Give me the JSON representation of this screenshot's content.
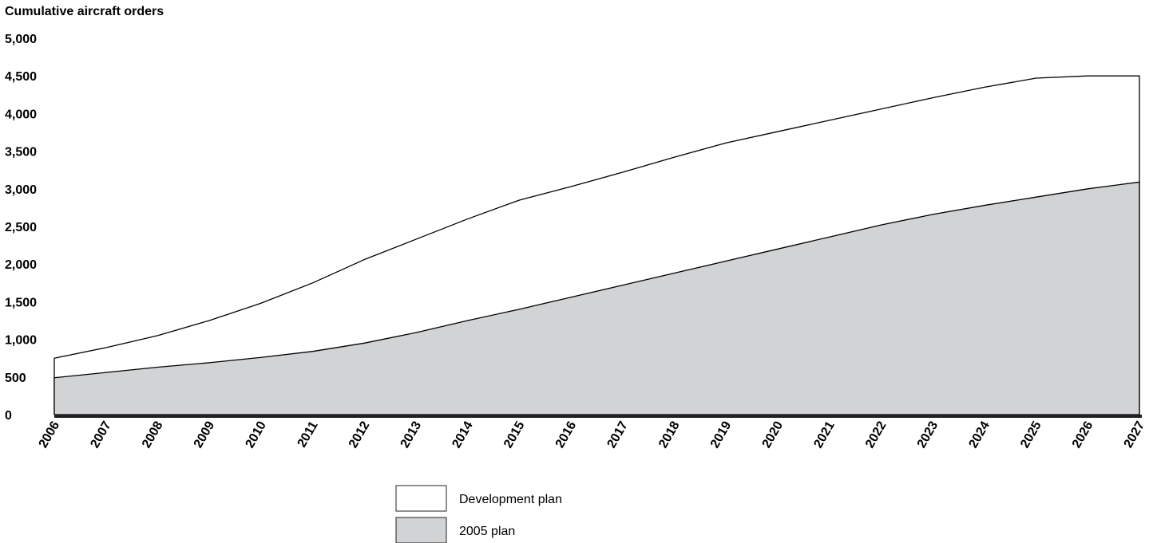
{
  "colors": {
    "development_fill": "#ffffff",
    "plan2005_fill": "#d1d3d4",
    "line": "#000000",
    "axis": "#231f20"
  },
  "chart_data": {
    "type": "area",
    "ylabel": "Cumulative aircraft orders",
    "xlabel": "",
    "ylim": [
      0,
      5000
    ],
    "yticks": [
      0,
      500,
      1000,
      1500,
      2000,
      2500,
      3000,
      3500,
      4000,
      4500,
      5000
    ],
    "ytick_labels": [
      "0",
      "500",
      "1,000",
      "1,500",
      "2,000",
      "2,500",
      "3,000",
      "3,500",
      "4,000",
      "4,500",
      "5,000"
    ],
    "categories": [
      "2006",
      "2007",
      "2008",
      "2009",
      "2010",
      "2011",
      "2012",
      "2013",
      "2014",
      "2015",
      "2016",
      "2017",
      "2018",
      "2019",
      "2020",
      "2021",
      "2022",
      "2023",
      "2024",
      "2025",
      "2026",
      "2027"
    ],
    "grid": false,
    "legend_position": "bottom-center",
    "series": [
      {
        "name": "Development plan",
        "color_key": "development_fill",
        "values": [
          750,
          890,
          1050,
          1250,
          1480,
          1750,
          2060,
          2330,
          2600,
          2850,
          3030,
          3220,
          3420,
          3610,
          3760,
          3910,
          4060,
          4210,
          4350,
          4470,
          4500,
          4500
        ]
      },
      {
        "name": "2005 plan",
        "color_key": "plan2005_fill",
        "values": [
          490,
          560,
          630,
          690,
          760,
          840,
          950,
          1090,
          1250,
          1400,
          1560,
          1720,
          1880,
          2040,
          2200,
          2360,
          2520,
          2660,
          2780,
          2890,
          3000,
          3090
        ]
      }
    ]
  }
}
